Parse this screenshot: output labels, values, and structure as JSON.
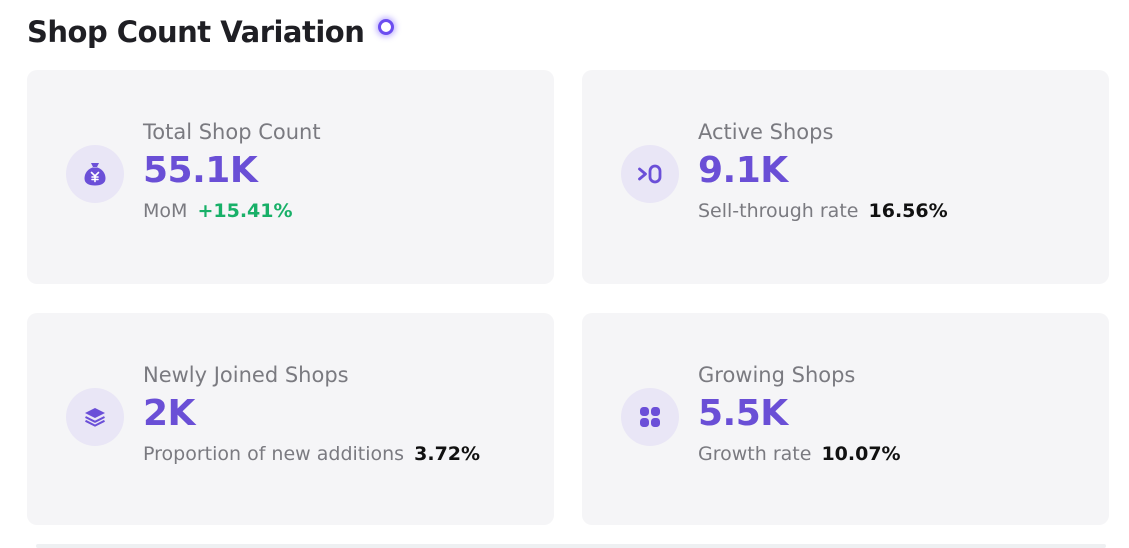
{
  "header": {
    "title": "Shop Count Variation",
    "info_icon": "info-dot-icon",
    "accent_color": "#6b4df0"
  },
  "cards": [
    {
      "icon": "money-bag-yen-icon",
      "label": "Total Shop Count",
      "value": "55.1K",
      "sub_label": "MoM",
      "sub_value": "+15.41%",
      "sub_value_color": "#18b068"
    },
    {
      "icon": "greater-than-zero-icon",
      "label": "Active Shops",
      "value": "9.1K",
      "sub_label": "Sell-through rate",
      "sub_value": "16.56%"
    },
    {
      "icon": "layers-icon",
      "label": "Newly Joined Shops",
      "value": "2K",
      "sub_label": "Proportion of new additions",
      "sub_value": "3.72%"
    },
    {
      "icon": "grid-four-icon",
      "label": "Growing Shops",
      "value": "5.5K",
      "sub_label": "Growth rate",
      "sub_value": "10.07%"
    }
  ],
  "colors": {
    "value": "#6a4fd6",
    "card_bg": "#f5f5f7",
    "icon_bg": "#e9e6f6",
    "positive": "#18b068"
  }
}
